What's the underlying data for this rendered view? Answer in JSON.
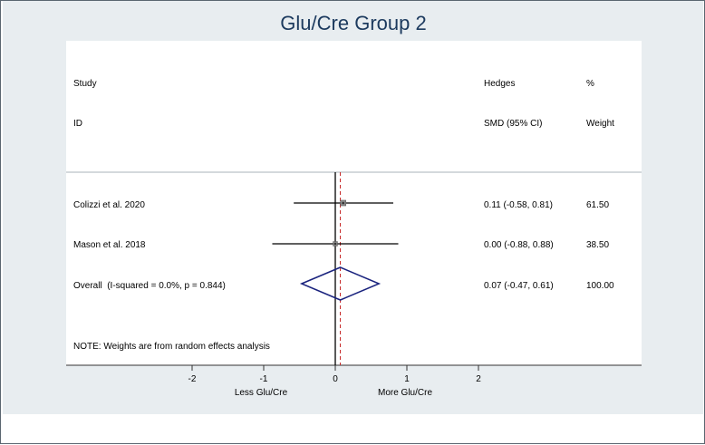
{
  "chart_data": {
    "type": "forest",
    "title": "Glu/Cre Group 2",
    "headers": {
      "study_top": "Study",
      "study_bottom": "ID",
      "effect_top": "Hedges",
      "effect_bottom": "SMD (95% CI)",
      "weight_top": "%",
      "weight_bottom": "Weight"
    },
    "studies": [
      {
        "label": "Colizzi et al. 2020",
        "estimate": 0.11,
        "lower": -0.58,
        "upper": 0.81,
        "ci_text": "0.11 (-0.58, 0.81)",
        "weight": "61.50"
      },
      {
        "label": "Mason et al. 2018",
        "estimate": 0.0,
        "lower": -0.88,
        "upper": 0.88,
        "ci_text": "0.00 (-0.88, 0.88)",
        "weight": "38.50"
      }
    ],
    "overall": {
      "label": "Overall  (I-squared = 0.0%, p = 0.844)",
      "estimate": 0.07,
      "lower": -0.47,
      "upper": 0.61,
      "ci_text": "0.07 (-0.47, 0.61)",
      "weight": "100.00"
    },
    "note": "NOTE: Weights are from random effects analysis",
    "x_ticks": [
      -2,
      -1,
      0,
      1,
      2
    ],
    "x_ticks_labels": [
      "-2",
      "-1",
      "0",
      "1",
      "2"
    ],
    "xlabel_left": "Less Glu/Cre",
    "xlabel_right": "More Glu/Cre",
    "null_line": 0,
    "colors": {
      "diamond": "#1a237e",
      "overall_line": "#c62828",
      "title": "#1c3a5e",
      "background": "#e8edf0"
    }
  }
}
